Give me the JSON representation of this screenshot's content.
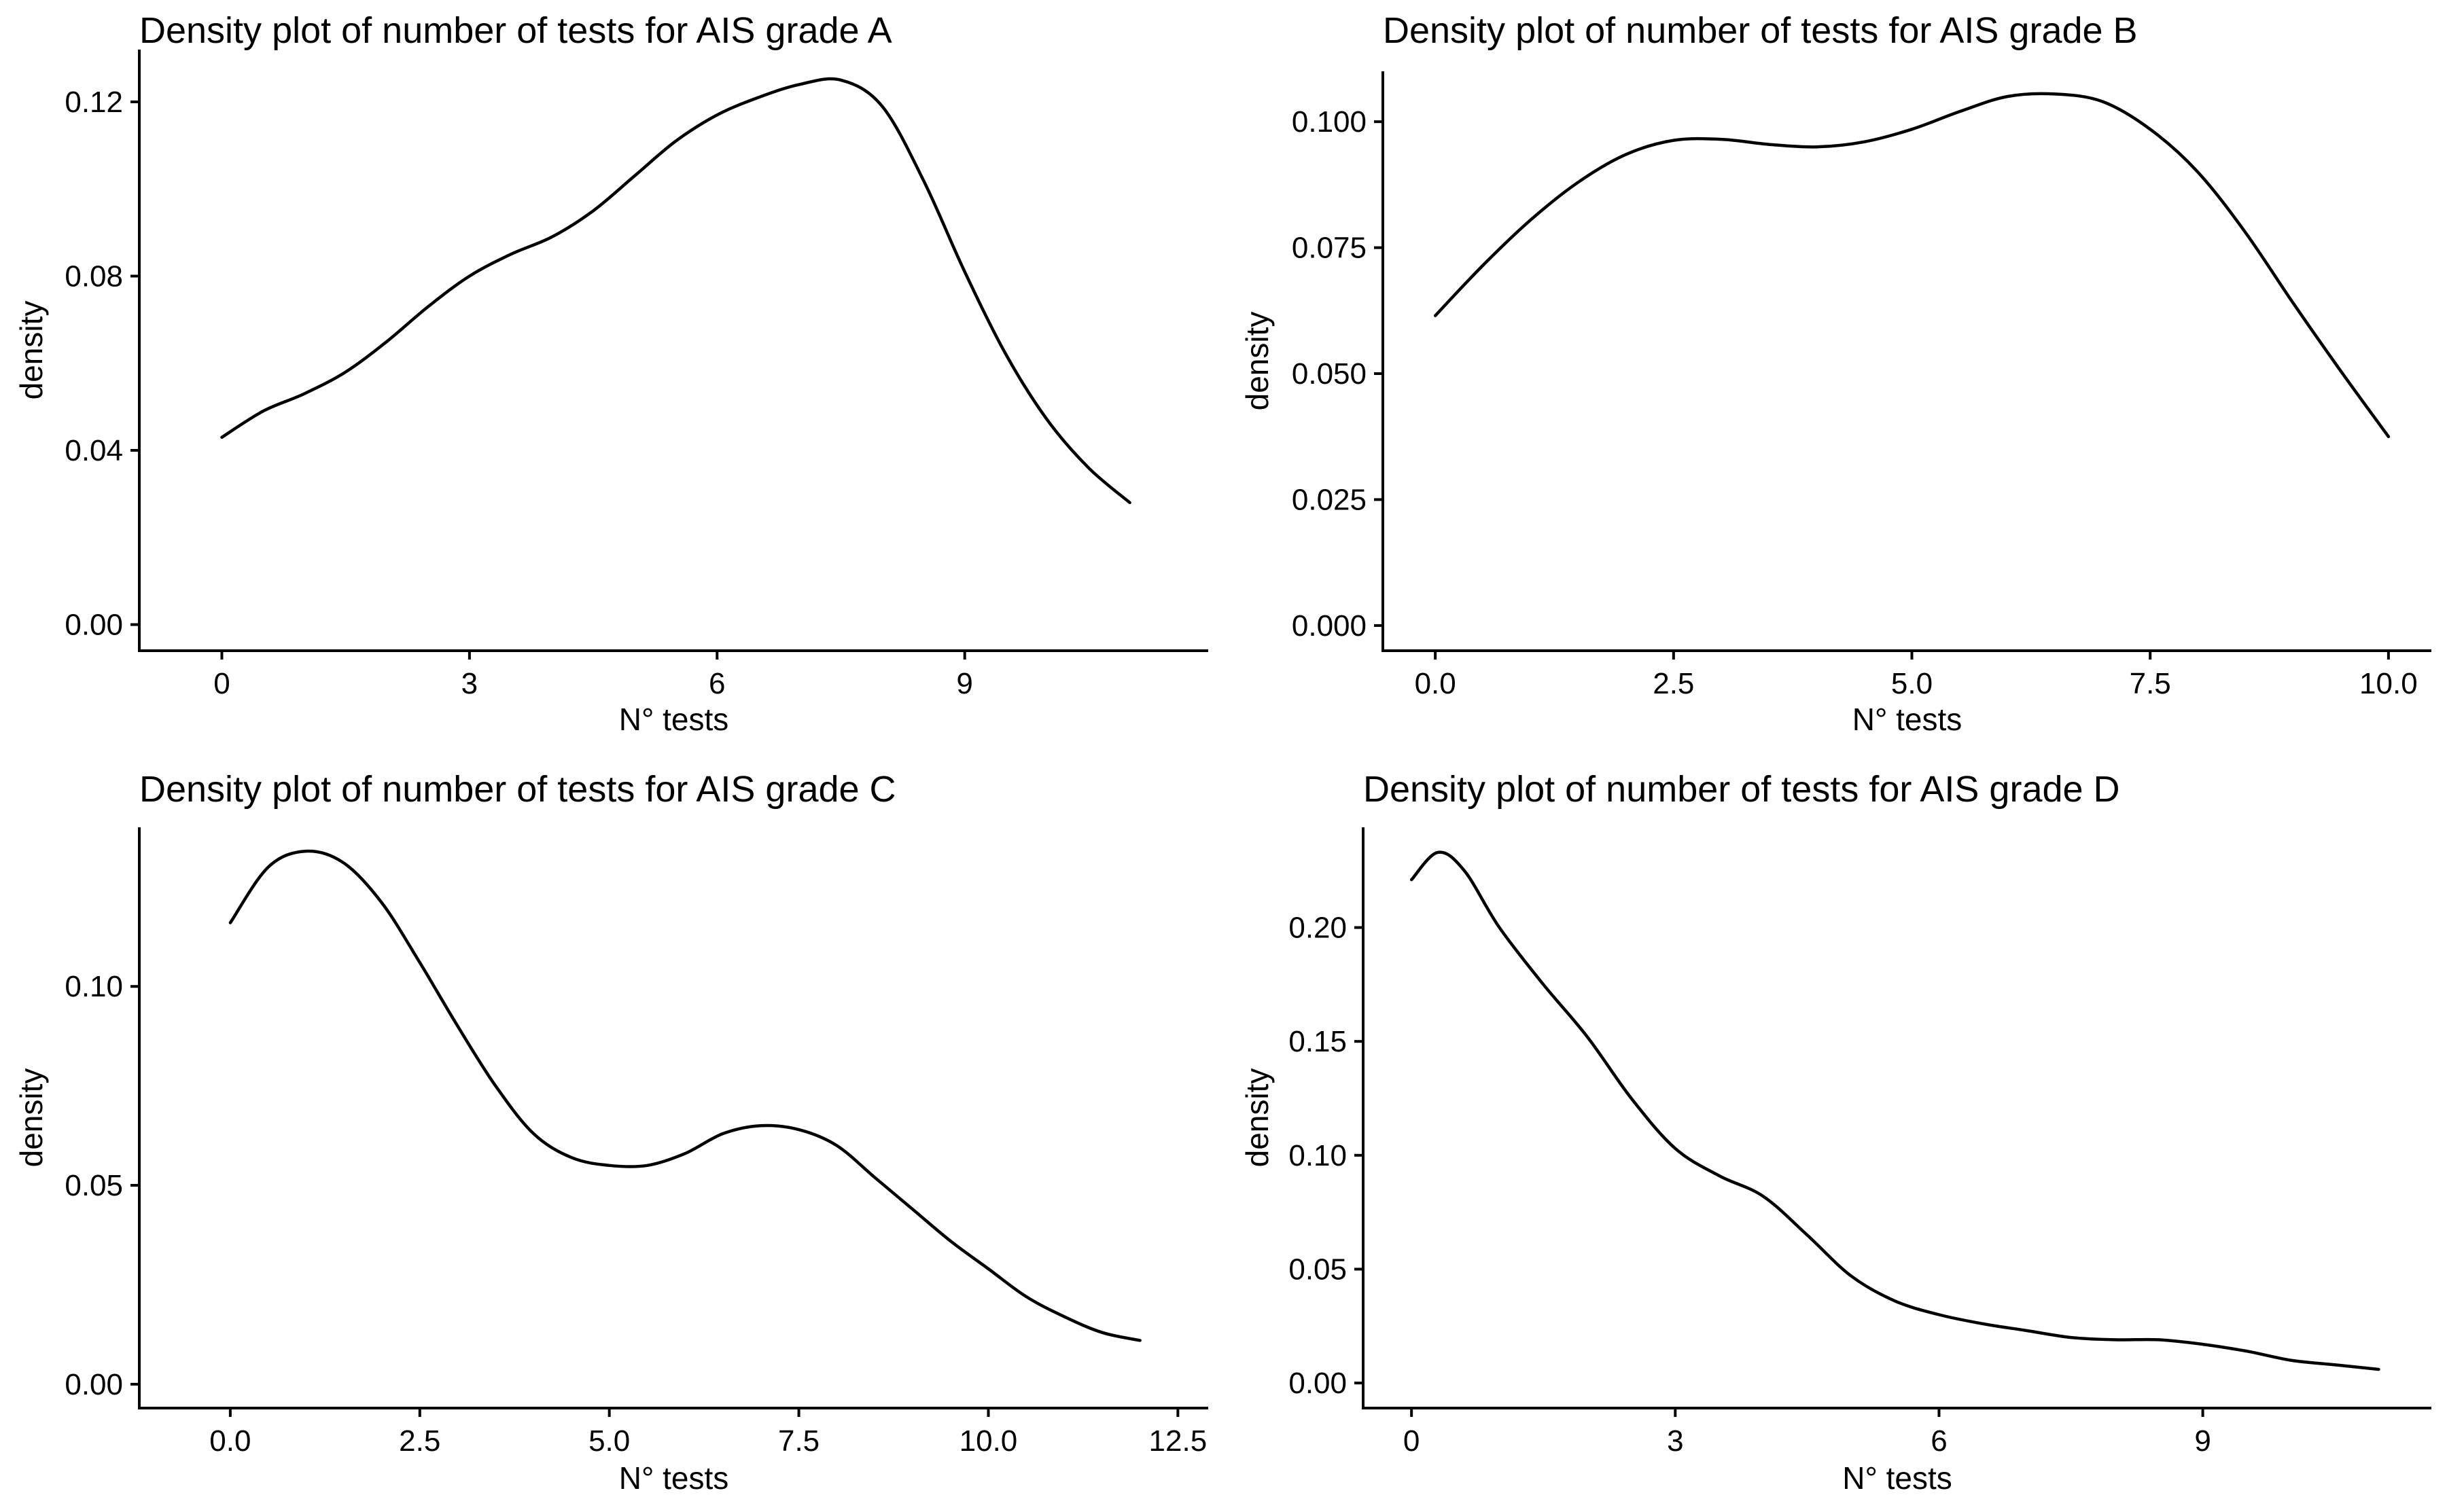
{
  "colors": {
    "line": "#000000",
    "axis": "#000000",
    "background": "#ffffff"
  },
  "chart_data": [
    {
      "type": "line",
      "title": "Density plot of number of tests for AIS grade A",
      "xlabel": "N° tests",
      "ylabel": "density",
      "xlim": [
        -1.0,
        11.95
      ],
      "ylim": [
        -0.006,
        0.132
      ],
      "xticks": [
        0,
        3,
        6,
        9
      ],
      "xtick_labels": [
        "0",
        "3",
        "6",
        "9"
      ],
      "yticks": [
        0.0,
        0.04,
        0.08,
        0.12
      ],
      "ytick_labels": [
        "0.00",
        "0.04",
        "0.08",
        "0.12"
      ],
      "grid": false,
      "series": [
        {
          "x": [
            0,
            0.5,
            1,
            1.5,
            2,
            2.5,
            3,
            3.5,
            4,
            4.5,
            5,
            5.5,
            6,
            6.5,
            7,
            7.5,
            8,
            8.5,
            9,
            9.5,
            10,
            10.5,
            11
          ],
          "y": [
            0.043,
            0.049,
            0.053,
            0.058,
            0.065,
            0.073,
            0.08,
            0.085,
            0.089,
            0.095,
            0.103,
            0.111,
            0.117,
            0.121,
            0.124,
            0.125,
            0.119,
            0.102,
            0.081,
            0.062,
            0.047,
            0.036,
            0.028
          ]
        }
      ]
    },
    {
      "type": "line",
      "title": "Density plot of number of tests for AIS grade B",
      "xlabel": "N° tests",
      "ylabel": "density",
      "xlim": [
        -0.55,
        10.45
      ],
      "ylim": [
        -0.005,
        0.11
      ],
      "xticks": [
        0.0,
        2.5,
        5.0,
        7.5,
        10.0
      ],
      "xtick_labels": [
        "0.0",
        "2.5",
        "5.0",
        "7.5",
        "10.0"
      ],
      "yticks": [
        0.0,
        0.025,
        0.05,
        0.075,
        0.1
      ],
      "ytick_labels": [
        "0.000",
        "0.025",
        "0.050",
        "0.075",
        "0.100"
      ],
      "grid": false,
      "series": [
        {
          "x": [
            0,
            0.5,
            1,
            1.5,
            2,
            2.5,
            3,
            3.5,
            4,
            4.5,
            5,
            5.5,
            6,
            6.5,
            7,
            7.5,
            8,
            8.5,
            9,
            9.5,
            10
          ],
          "y": [
            0.0615,
            0.0715,
            0.0805,
            0.088,
            0.0935,
            0.0963,
            0.0965,
            0.0955,
            0.095,
            0.096,
            0.0985,
            0.102,
            0.105,
            0.1055,
            0.104,
            0.0985,
            0.09,
            0.078,
            0.064,
            0.0505,
            0.0375
          ]
        }
      ]
    },
    {
      "type": "line",
      "title": "Density plot of number of tests for AIS grade C",
      "xlabel": "N° tests",
      "ylabel": "density",
      "xlim": [
        -1.2,
        12.9
      ],
      "ylim": [
        -0.006,
        0.14
      ],
      "xticks": [
        0.0,
        2.5,
        5.0,
        7.5,
        10.0,
        12.5
      ],
      "xtick_labels": [
        "0.0",
        "2.5",
        "5.0",
        "7.5",
        "10.0",
        "12.5"
      ],
      "yticks": [
        0.0,
        0.05,
        0.1
      ],
      "ytick_labels": [
        "0.00",
        "0.05",
        "0.10"
      ],
      "grid": false,
      "series": [
        {
          "x": [
            0,
            0.5,
            1,
            1.5,
            2,
            2.5,
            3,
            3.5,
            4,
            4.5,
            5,
            5.5,
            6,
            6.5,
            7,
            7.5,
            8,
            8.5,
            9,
            9.5,
            10,
            10.5,
            11,
            11.5,
            12
          ],
          "y": [
            0.116,
            0.13,
            0.134,
            0.131,
            0.121,
            0.106,
            0.09,
            0.075,
            0.063,
            0.057,
            0.055,
            0.055,
            0.058,
            0.063,
            0.065,
            0.064,
            0.06,
            0.052,
            0.044,
            0.036,
            0.029,
            0.022,
            0.017,
            0.013,
            0.011
          ]
        }
      ]
    },
    {
      "type": "line",
      "title": "Density plot of number of tests for AIS grade D",
      "xlabel": "N° tests",
      "ylabel": "density",
      "xlim": [
        -0.55,
        11.6
      ],
      "ylim": [
        -0.011,
        0.244
      ],
      "xticks": [
        0,
        3,
        6,
        9
      ],
      "xtick_labels": [
        "0",
        "3",
        "6",
        "9"
      ],
      "yticks": [
        0.0,
        0.05,
        0.1,
        0.15,
        0.2
      ],
      "ytick_labels": [
        "0.00",
        "0.05",
        "0.10",
        "0.15",
        "0.20"
      ],
      "grid": false,
      "series": [
        {
          "x": [
            0,
            0.3,
            0.6,
            1,
            1.5,
            2,
            2.5,
            3,
            3.5,
            4,
            4.5,
            5,
            5.5,
            6,
            6.5,
            7,
            7.5,
            8,
            8.5,
            9,
            9.5,
            10,
            10.5,
            11
          ],
          "y": [
            0.221,
            0.233,
            0.225,
            0.2,
            0.175,
            0.152,
            0.125,
            0.103,
            0.091,
            0.082,
            0.065,
            0.047,
            0.036,
            0.03,
            0.026,
            0.023,
            0.02,
            0.019,
            0.019,
            0.017,
            0.014,
            0.01,
            0.008,
            0.006
          ]
        }
      ]
    }
  ]
}
